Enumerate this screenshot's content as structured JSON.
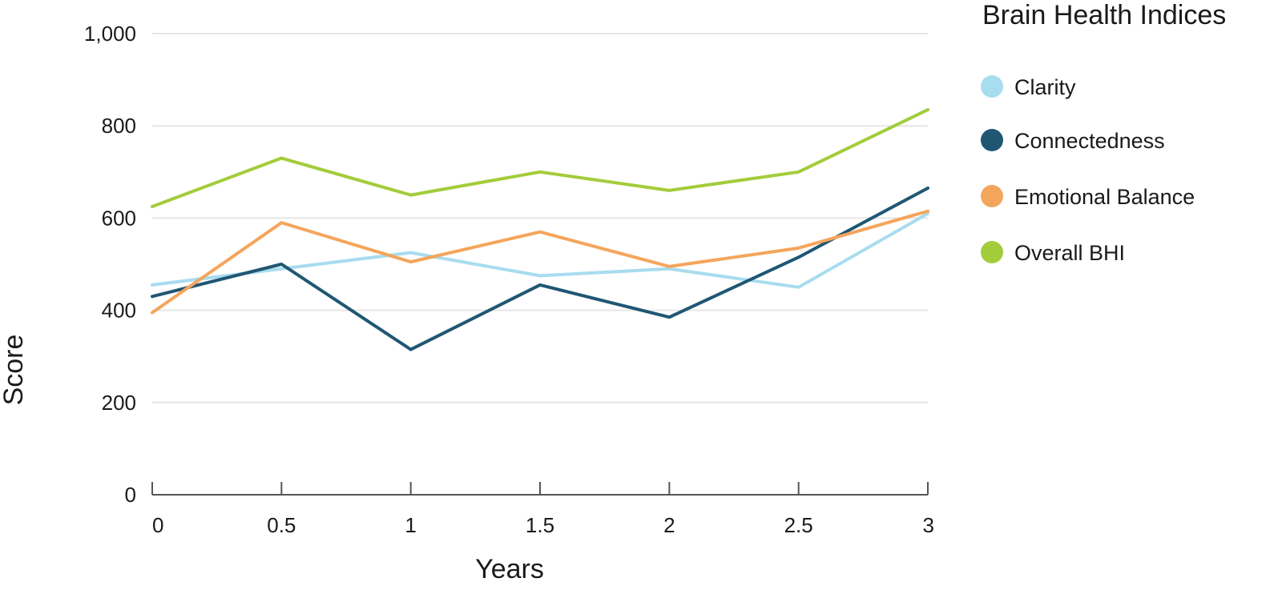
{
  "chart_data": {
    "type": "line",
    "title": "",
    "xlabel": "Years",
    "ylabel": "Score",
    "x": [
      0,
      0.5,
      1,
      1.5,
      2,
      2.5,
      3
    ],
    "x_tick_labels": [
      "0",
      "0.5",
      "1",
      "1.5",
      "2",
      "2.5",
      "3"
    ],
    "y_ticks": [
      0,
      200,
      400,
      600,
      800,
      1000
    ],
    "y_tick_labels": [
      "0",
      "200",
      "400",
      "600",
      "800",
      "1,000"
    ],
    "xlim": [
      0,
      3
    ],
    "ylim": [
      0,
      1000
    ],
    "grid": true,
    "legend": {
      "title": "Brain Health Indices",
      "placement": "right"
    },
    "series": [
      {
        "name": "Clarity",
        "color": "#a8dcef",
        "values": [
          455,
          490,
          525,
          475,
          490,
          450,
          610
        ]
      },
      {
        "name": "Connectedness",
        "color": "#1f5773",
        "values": [
          430,
          500,
          315,
          455,
          385,
          515,
          665
        ]
      },
      {
        "name": "Emotional Balance",
        "color": "#f4a55c",
        "values": [
          395,
          590,
          505,
          570,
          495,
          535,
          615
        ]
      },
      {
        "name": "Overall BHI",
        "color": "#a3cc3a",
        "values": [
          625,
          730,
          650,
          700,
          660,
          700,
          835
        ]
      }
    ]
  }
}
